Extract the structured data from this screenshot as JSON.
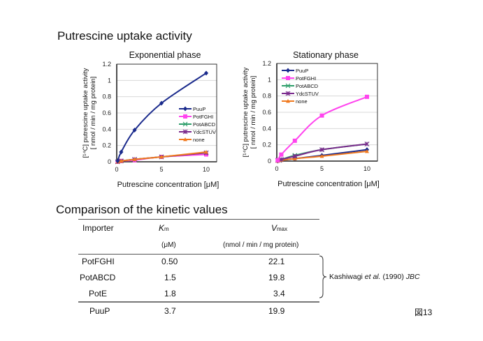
{
  "page": {
    "title": "Putrescine uptake activity",
    "table_title": "Comparison of the kinetic values",
    "figure_label": "図13"
  },
  "chart_data": [
    {
      "type": "line",
      "title": "Exponential phase",
      "xlabel": "Putrescine concentration [μM]",
      "ylabel_line1": "[¹⁴C] putrescine uptake activity",
      "ylabel_line2": "[ nmol / min / mg protein]",
      "xlim": [
        0,
        10
      ],
      "ylim": [
        0,
        1.2
      ],
      "x_ticks": [
        "0",
        "5",
        "10"
      ],
      "y_ticks": [
        "0",
        "0.2",
        "0.4",
        "0.6",
        "0.8",
        "1",
        "1.2"
      ],
      "grid": true,
      "legend_position": "center-right",
      "x": [
        0.1,
        0.5,
        2,
        5,
        10
      ],
      "series": [
        {
          "name": "PuuP",
          "color": "#1a2a8c",
          "marker": "diamond",
          "values": [
            0.01,
            0.12,
            0.39,
            0.72,
            1.09
          ]
        },
        {
          "name": "PotFGHI",
          "color": "#ff44ee",
          "marker": "square",
          "values": [
            0.0,
            0.01,
            0.02,
            0.06,
            0.09
          ]
        },
        {
          "name": "PotABCD",
          "color": "#2e9e6a",
          "marker": "x",
          "values": [
            0.0,
            0.01,
            0.03,
            0.06,
            0.11
          ]
        },
        {
          "name": "YdcSTUV",
          "color": "#7a2a8c",
          "marker": "star",
          "values": [
            0.0,
            0.01,
            0.03,
            0.06,
            0.11
          ]
        },
        {
          "name": "none",
          "color": "#f07a20",
          "marker": "triangle",
          "values": [
            0.0,
            0.01,
            0.03,
            0.06,
            0.12
          ]
        }
      ]
    },
    {
      "type": "line",
      "title": "Stationary phase",
      "xlabel": "Putrescine concentration [μM]",
      "ylabel_line1": "[¹⁴C] putrescine uptake activity",
      "ylabel_line2": "[ nmol / min / mg protein]",
      "xlim": [
        0,
        10
      ],
      "ylim": [
        0,
        1.2
      ],
      "x_ticks": [
        "0",
        "5",
        "10"
      ],
      "y_ticks": [
        "0",
        "0.2",
        "0.4",
        "0.6",
        "0.8",
        "1",
        "1.2"
      ],
      "grid": true,
      "legend_position": "top-left",
      "x": [
        0.1,
        0.5,
        2,
        5,
        10
      ],
      "series": [
        {
          "name": "PuuP",
          "color": "#1a2a8c",
          "marker": "diamond",
          "values": [
            0.0,
            0.01,
            0.03,
            0.07,
            0.14
          ]
        },
        {
          "name": "PotFGHI",
          "color": "#ff44ee",
          "marker": "square",
          "values": [
            0.01,
            0.08,
            0.25,
            0.56,
            0.79
          ]
        },
        {
          "name": "PotABCD",
          "color": "#2e9e6a",
          "marker": "x",
          "values": [
            0.01,
            0.02,
            0.07,
            0.14,
            0.21
          ]
        },
        {
          "name": "YdcSTUV",
          "color": "#7a2a8c",
          "marker": "star",
          "values": [
            0.01,
            0.02,
            0.06,
            0.14,
            0.21
          ]
        },
        {
          "name": "none",
          "color": "#f07a20",
          "marker": "triangle",
          "values": [
            0.0,
            0.01,
            0.03,
            0.06,
            0.12
          ]
        }
      ]
    }
  ],
  "table": {
    "headers": {
      "importer": "Importer",
      "km_main": "K",
      "km_sub": "m",
      "km_unit": "(μM)",
      "vmax_main": "V",
      "vmax_sub": "max",
      "vmax_unit": "(nmol / min / mg protein)"
    },
    "rows": [
      {
        "importer": "PotFGHI",
        "km": "0.50",
        "vmax": "22.1"
      },
      {
        "importer": "PotABCD",
        "km": "1.5",
        "vmax": "19.8"
      },
      {
        "importer": "PotE",
        "km": "1.8",
        "vmax": "3.4"
      },
      {
        "importer": "PuuP",
        "km": "3.7",
        "vmax": "19.9"
      }
    ],
    "citation": {
      "author": "Kashiwagi ",
      "etal": "et al.",
      "year": " (1990) ",
      "journal": "JBC"
    }
  }
}
